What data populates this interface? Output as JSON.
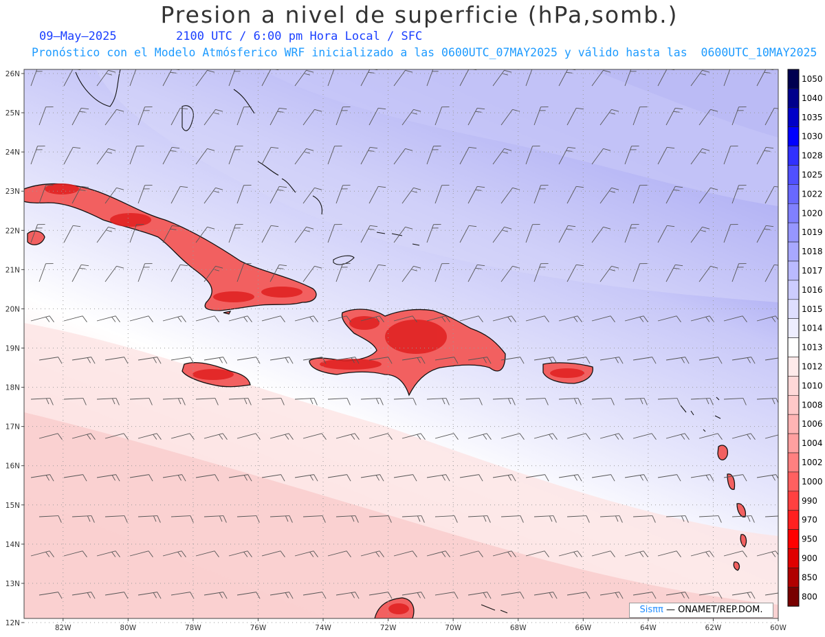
{
  "header": {
    "title": "Presion a nivel de superficie (hPa,somb.)",
    "date": "09—May—2025",
    "time": "2100 UTC / 6:00 pm Hora Local / SFC",
    "forecast": "Pronóstico con el Modelo Atmósferico WRF inicializado a las 0600UTC_07MAY2025 y válido hasta las  0600UTC_10MAY2025"
  },
  "map": {
    "lat_labels": [
      "26N",
      "25N",
      "24N",
      "23N",
      "22N",
      "21N",
      "20N",
      "19N",
      "18N",
      "17N",
      "16N",
      "15N",
      "14N",
      "13N",
      "12N"
    ],
    "lon_labels": [
      "82W",
      "80W",
      "78W",
      "76W",
      "74W",
      "72W",
      "70W",
      "68W",
      "66W",
      "64W",
      "62W",
      "60W"
    ],
    "lat_range": [
      12,
      26
    ],
    "lon_range": [
      -83.2,
      -60
    ],
    "land_color": "#e23030",
    "high_color": "#8080f0",
    "low_color": "#f8d0d0",
    "grid": "dotted gray"
  },
  "colorbar": {
    "levels": [
      "1050",
      "1040",
      "1035",
      "1030",
      "1028",
      "1025",
      "1022",
      "1020",
      "1019",
      "1018",
      "1017",
      "1016",
      "1015",
      "1014",
      "1013",
      "1012",
      "1010",
      "1008",
      "1006",
      "1004",
      "1002",
      "1000",
      "990",
      "970",
      "950",
      "900",
      "850",
      "800"
    ],
    "colors": [
      "#000050",
      "#00008c",
      "#0000c8",
      "#0000ff",
      "#3030ff",
      "#5050ff",
      "#6868ff",
      "#8080ff",
      "#9696ff",
      "#a8a8ff",
      "#babaff",
      "#ccccff",
      "#dedeff",
      "#eeeeff",
      "#ffffff",
      "#ffeaea",
      "#ffd8d8",
      "#ffc8c8",
      "#ffb4b4",
      "#ffa0a0",
      "#ff8080",
      "#ff6060",
      "#ff4040",
      "#ff2020",
      "#ff0000",
      "#e00000",
      "#b00000",
      "#780000"
    ]
  },
  "credit": {
    "logo": "Sisππ",
    "text": " — ONAMET/REP.DOM."
  }
}
